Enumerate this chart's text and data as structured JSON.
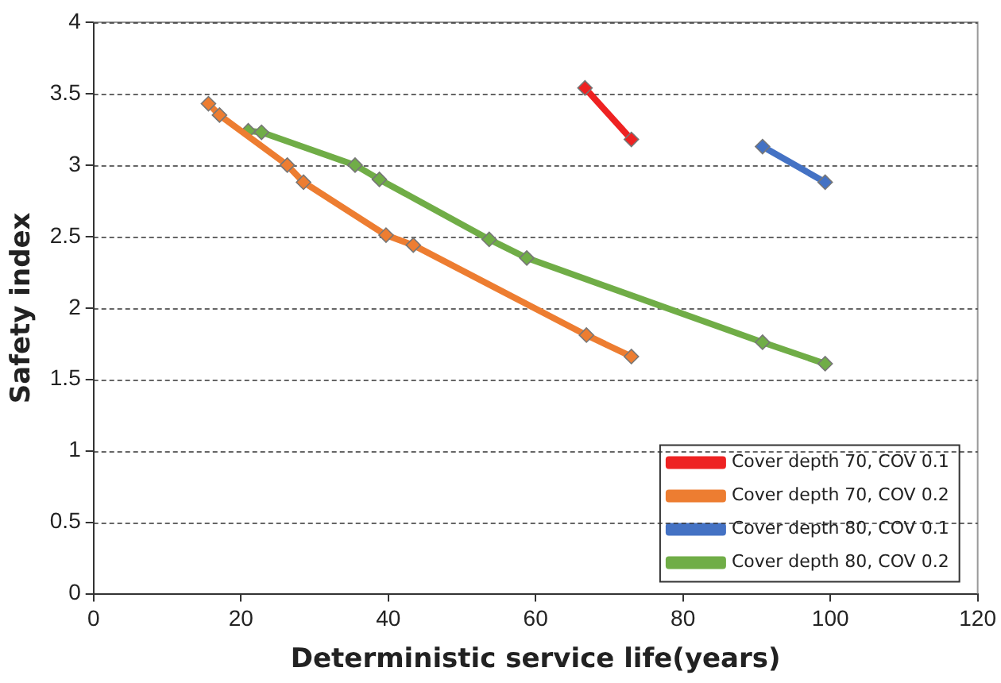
{
  "chart_data": {
    "type": "line",
    "xlabel": "Deterministic service life(years)",
    "ylabel": "Safety index",
    "xlim": [
      0,
      120
    ],
    "xticks": [
      0,
      20,
      40,
      60,
      80,
      100,
      120
    ],
    "ylim": [
      0,
      4
    ],
    "yticks": [
      0,
      0.5,
      1,
      1.5,
      2,
      2.5,
      3,
      3.5,
      4
    ],
    "grid": "y",
    "legend": "bottom right",
    "marker": "diamond",
    "series": [
      {
        "name": "Cover depth 70, COV 0.1",
        "color": "#ee2222",
        "x": [
          66.7,
          73.0
        ],
        "values": [
          3.54,
          3.18
        ]
      },
      {
        "name": "Cover depth 70, COV 0.2",
        "color": "#ed7d31",
        "x": [
          15.6,
          17.1,
          26.3,
          28.5,
          39.7,
          43.4,
          66.9,
          73.0
        ],
        "values": [
          3.43,
          3.35,
          3.0,
          2.88,
          2.51,
          2.44,
          1.81,
          1.66
        ]
      },
      {
        "name": "Cover depth 80, COV 0.1",
        "color": "#4472c4",
        "x": [
          90.8,
          99.3
        ],
        "values": [
          3.13,
          2.88
        ]
      },
      {
        "name": "Cover depth 80, COV 0.2",
        "color": "#70ad47",
        "x": [
          21.0,
          22.8,
          35.5,
          38.8,
          53.7,
          58.8,
          90.8,
          99.3
        ],
        "values": [
          3.24,
          3.23,
          3.0,
          2.9,
          2.48,
          2.35,
          1.76,
          1.61
        ]
      }
    ]
  }
}
